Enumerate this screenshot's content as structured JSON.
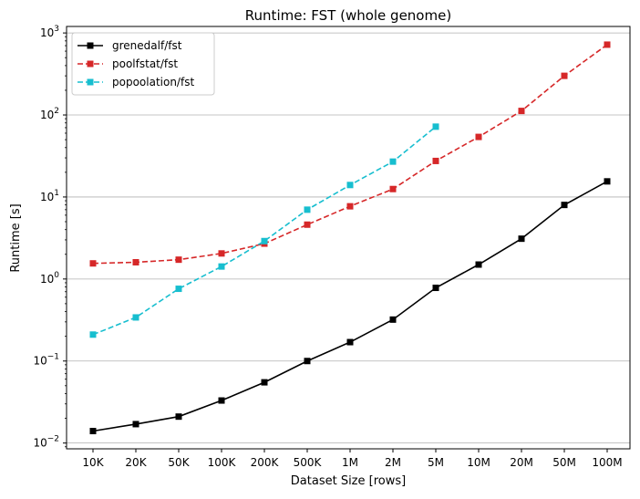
{
  "chart_data": {
    "type": "line",
    "title": "Runtime:  FST (whole genome)",
    "xlabel": "Dataset Size  [rows]",
    "ylabel": "Runtime  [s]",
    "categories": [
      "10K",
      "20K",
      "50K",
      "100K",
      "200K",
      "500K",
      "1M",
      "2M",
      "5M",
      "10M",
      "20M",
      "50M",
      "100M"
    ],
    "y_scale": "log",
    "ylim": [
      0.0085,
      1200
    ],
    "y_ticks": [
      {
        "value": 0.01,
        "base": "10",
        "exp": "−2"
      },
      {
        "value": 0.1,
        "base": "10",
        "exp": "−1"
      },
      {
        "value": 1,
        "base": "10",
        "exp": "0"
      },
      {
        "value": 10,
        "base": "10",
        "exp": "1"
      },
      {
        "value": 100,
        "base": "10",
        "exp": "2"
      },
      {
        "value": 1000,
        "base": "10",
        "exp": "3"
      }
    ],
    "grid": "horizontal-major",
    "legend_position": "top-left",
    "series": [
      {
        "name": "grenedalf/fst",
        "color": "#000000",
        "dash": "solid",
        "values": [
          0.014,
          0.017,
          0.021,
          0.033,
          0.055,
          0.1,
          0.17,
          0.32,
          0.78,
          1.5,
          3.1,
          8.0,
          15.5
        ]
      },
      {
        "name": "poolfstat/fst",
        "color": "#d62728",
        "dash": "dashed",
        "values": [
          1.55,
          1.6,
          1.72,
          2.05,
          2.7,
          4.6,
          7.7,
          12.5,
          27.5,
          54,
          112,
          300,
          720
        ]
      },
      {
        "name": "popoolation/fst",
        "color": "#17becf",
        "dash": "dashed",
        "values": [
          0.21,
          0.34,
          0.76,
          1.42,
          2.9,
          7.0,
          14,
          27,
          72,
          null,
          null,
          null,
          null
        ]
      }
    ]
  }
}
